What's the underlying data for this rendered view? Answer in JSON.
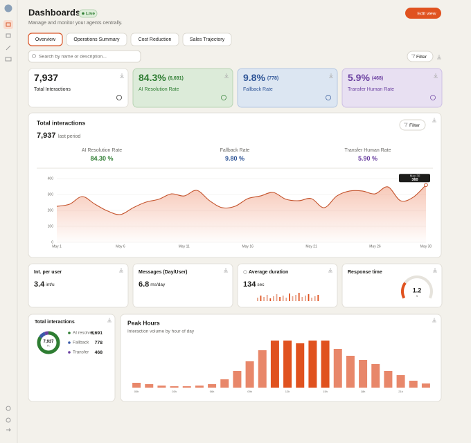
{
  "header": {
    "title": "Dashboards",
    "badge": "Live",
    "subtitle": "Manage and monitor your agents centrally.",
    "button": "Edit view"
  },
  "tabs": [
    "Overview",
    "Operations Summary",
    "Cost Reduction",
    "Sales Trajectory"
  ],
  "search_placeholder": "Search by name or description...",
  "filter": "Filter",
  "kpis": [
    {
      "value": "7,937",
      "label": "Total Interactions"
    },
    {
      "value": "84.3%",
      "detail": "(6,691)",
      "label": "AI Resolution Rate"
    },
    {
      "value": "9.8%",
      "detail": "(778)",
      "label": "Fallback Rate"
    },
    {
      "value": "5.9%",
      "detail": "(468)",
      "label": "Transfer Human Rate"
    }
  ],
  "summary": {
    "title": "Total interactions",
    "total": "7,937",
    "total_note": "last period",
    "filter": "Filter",
    "stats": [
      {
        "label": "AI Resolution Rate",
        "value": "84.30 %"
      },
      {
        "label": "Fallback Rate",
        "value": "9.80 %"
      },
      {
        "label": "Transfer Human Rate",
        "value": "5.90 %"
      }
    ]
  },
  "metrics": [
    {
      "label": "Int. per user",
      "value": "3.4",
      "unit": "int/u"
    },
    {
      "label": "Messages (Day/User)",
      "value": "6.8",
      "unit": "ms/day"
    },
    {
      "label": "Average duration",
      "value": "134",
      "unit": "sec"
    },
    {
      "label": "Response time",
      "value": "1.2",
      "unit": "s"
    }
  ],
  "chart_data": [
    {
      "type": "line",
      "categories": [
        "May 1",
        null,
        null,
        null,
        null,
        "May 6",
        null,
        null,
        null,
        null,
        "May 11",
        null,
        null,
        null,
        null,
        "May 16",
        null,
        null,
        null,
        null,
        "May 21",
        null,
        null,
        null,
        null,
        "May 26",
        null,
        null,
        null,
        "May 30"
      ],
      "values": [
        226,
        239,
        287,
        239,
        196,
        174,
        217,
        252,
        270,
        304,
        291,
        326,
        261,
        217,
        226,
        274,
        291,
        313,
        270,
        261,
        274,
        217,
        291,
        322,
        322,
        304,
        348,
        261,
        283,
        360
      ],
      "color": "#c4532c",
      "ylim": [
        0,
        400
      ],
      "yticks": [
        0,
        100,
        200,
        300,
        400
      ],
      "grid": true
    },
    {
      "type": "bar",
      "title": "Peak Hours",
      "subtitle": "Interaction volume by hour of day",
      "categories": [
        "00h",
        null,
        null,
        "03h",
        null,
        null,
        "06h",
        null,
        null,
        "09h",
        null,
        null,
        "12h",
        null,
        null,
        "15h",
        null,
        null,
        "18h",
        null,
        null,
        "21h",
        null,
        null
      ],
      "values": [
        7,
        5,
        3,
        2,
        2,
        3,
        5,
        12,
        24,
        38,
        54,
        68,
        68,
        64,
        68,
        68,
        56,
        46,
        40,
        34,
        24,
        18,
        10,
        6
      ],
      "colors": [
        "#e8876a",
        "#e8876a",
        "#e8876a",
        "#e8876a",
        "#e8876a",
        "#e8876a",
        "#e8876a",
        "#e8876a",
        "#e8876a",
        "#e8876a",
        "#e8876a",
        "#e0521f",
        "#e0521f",
        "#e0521f",
        "#e0521f",
        "#e0521f",
        "#e8876a",
        "#e8876a",
        "#e8876a",
        "#e8876a",
        "#e8876a",
        "#e8876a",
        "#e8876a",
        "#e8876a"
      ]
    },
    {
      "type": "donut",
      "title": "Total interactions",
      "center": "7,937",
      "center_note": "Int.",
      "categories": [
        "AI resolved",
        "Fallback",
        "Transfer"
      ],
      "values": [
        6691,
        778,
        468
      ],
      "value_labels": [
        "6,691",
        "778",
        "468"
      ],
      "colors": [
        "#2e7d32",
        "#3b5ba9",
        "#6a3fa0"
      ]
    }
  ]
}
